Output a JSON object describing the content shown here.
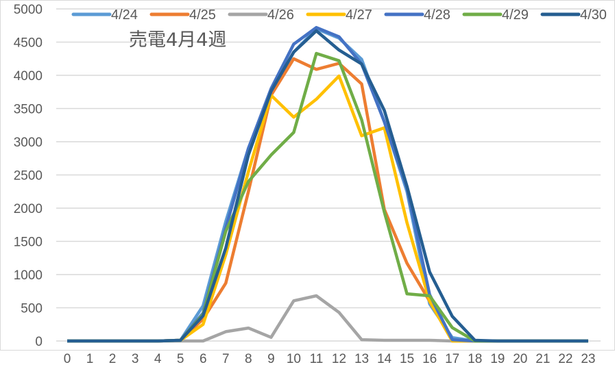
{
  "chart_data": {
    "type": "line",
    "title": "売電4月4週",
    "xlabel": "",
    "ylabel": "",
    "x": [
      0,
      1,
      2,
      3,
      4,
      5,
      6,
      7,
      8,
      9,
      10,
      11,
      12,
      13,
      14,
      15,
      16,
      17,
      18,
      19,
      20,
      21,
      22,
      23
    ],
    "ylim": [
      0,
      5000
    ],
    "yticks": [
      0,
      500,
      1000,
      1500,
      2000,
      2500,
      3000,
      3500,
      4000,
      4500,
      5000
    ],
    "grid": true,
    "legend_position": "top",
    "series": [
      {
        "name": "4/24",
        "color": "#5B9BD5",
        "values": [
          0,
          0,
          0,
          0,
          0,
          10,
          530,
          1800,
          2900,
          3750,
          4350,
          4700,
          4560,
          4240,
          3300,
          2250,
          560,
          50,
          0,
          0,
          0,
          0,
          0,
          0
        ]
      },
      {
        "name": "4/25",
        "color": "#ED7D31",
        "values": [
          0,
          0,
          0,
          0,
          0,
          10,
          330,
          870,
          2250,
          3700,
          4250,
          4090,
          4180,
          3870,
          1980,
          1170,
          600,
          0,
          0,
          0,
          0,
          0,
          0,
          0
        ]
      },
      {
        "name": "4/26",
        "color": "#A5A5A5",
        "values": [
          0,
          0,
          0,
          0,
          0,
          0,
          0,
          140,
          195,
          55,
          605,
          680,
          430,
          20,
          10,
          10,
          10,
          0,
          0,
          0,
          0,
          0,
          0,
          0
        ]
      },
      {
        "name": "4/27",
        "color": "#FFC000",
        "values": [
          0,
          0,
          0,
          0,
          0,
          10,
          250,
          1300,
          2550,
          3700,
          3370,
          3640,
          3990,
          3090,
          3210,
          1780,
          600,
          0,
          0,
          0,
          0,
          0,
          0,
          0
        ]
      },
      {
        "name": "4/28",
        "color": "#4472C4",
        "values": [
          0,
          0,
          0,
          0,
          0,
          10,
          420,
          1700,
          2900,
          3800,
          4470,
          4720,
          4580,
          4170,
          3300,
          2300,
          700,
          20,
          0,
          0,
          0,
          0,
          0,
          0
        ]
      },
      {
        "name": "4/29",
        "color": "#70AD47",
        "values": [
          0,
          0,
          0,
          0,
          0,
          10,
          400,
          1650,
          2400,
          2800,
          3140,
          4330,
          4220,
          3330,
          1940,
          710,
          680,
          200,
          0,
          0,
          0,
          0,
          0,
          0
        ]
      },
      {
        "name": "4/30",
        "color": "#255E91",
        "values": [
          0,
          0,
          0,
          0,
          0,
          10,
          380,
          1400,
          2800,
          3760,
          4350,
          4670,
          4380,
          4170,
          3470,
          2330,
          1040,
          370,
          10,
          0,
          0,
          0,
          0,
          0
        ]
      }
    ]
  }
}
